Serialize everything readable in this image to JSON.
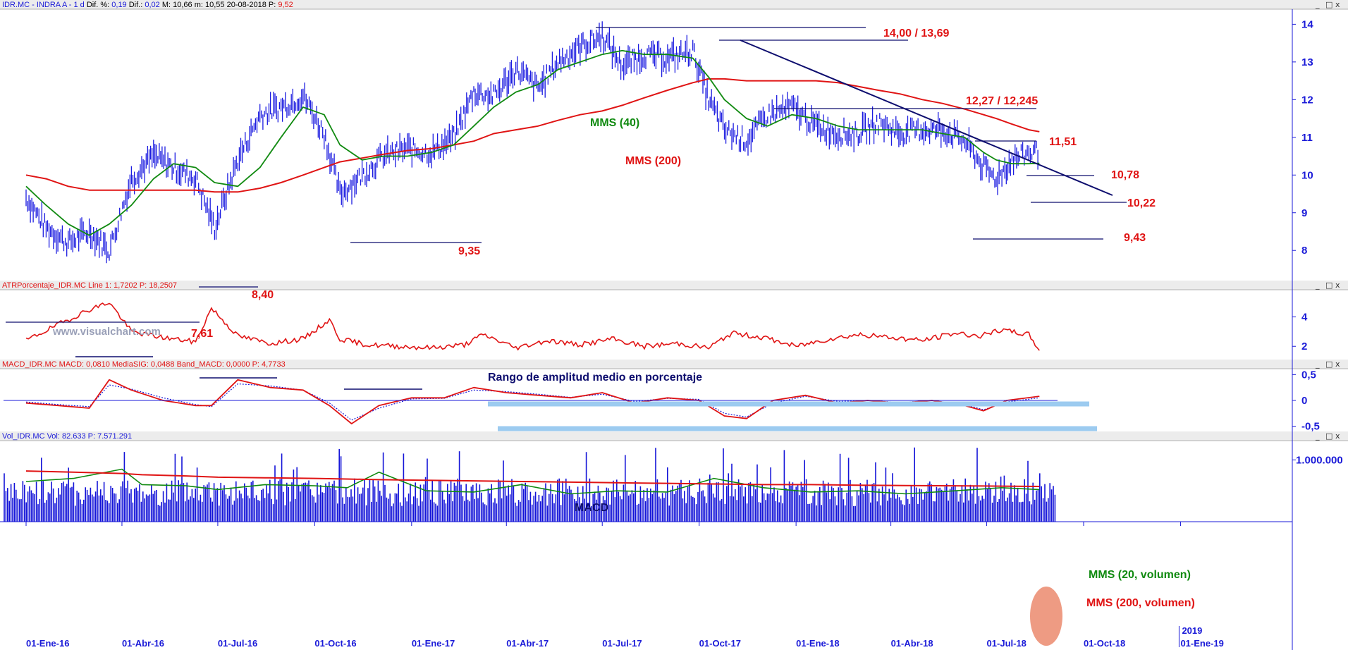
{
  "chart_data": {
    "type": "line",
    "ticker": "IDR.MC",
    "headers": {
      "price": {
        "name": "IDR.MC - INDRA A  - 1 d",
        "items": [
          {
            "label": "Dif. %:",
            "value": "0,19"
          },
          {
            "label": "Dif.:",
            "value": "0,02"
          },
          {
            "label": "M:",
            "value": "10,66"
          },
          {
            "label": "m:",
            "value": "10,55"
          },
          {
            "label": "",
            "value": "20-08-2018"
          },
          {
            "label": "P:",
            "value": "9,52"
          }
        ]
      },
      "atr": "ATRPorcentaje_IDR.MC  Line 1: 1,7202  P: 18,2507",
      "macd": "MACD_IDR.MC  MACD: 0,0810  MediaSIG: 0,0488  Band_MACD: 0,0000  P: 4,7733",
      "volume": "Vol_IDR.MC  Vol: 82.633  P: 7.571.291"
    },
    "x_dates": [
      "01-Ene-16",
      "01-Abr-16",
      "01-Jul-16",
      "01-Oct-16",
      "01-Ene-17",
      "01-Abr-17",
      "01-Jul-17",
      "01-Oct-17",
      "01-Ene-18",
      "01-Abr-18",
      "01-Jul-18",
      "01-Oct-18",
      "01-Ene-19"
    ],
    "x_year_marker": "2019",
    "price_axis": {
      "ticks": [
        "14",
        "13",
        "12",
        "11",
        "10",
        "9",
        "8"
      ],
      "ylim": [
        7.2,
        14.4
      ]
    },
    "atr_axis": {
      "ticks": [
        "4",
        "2"
      ],
      "ylim": [
        1.1,
        5.8
      ]
    },
    "macd_axis": {
      "ticks": [
        "0,5",
        "0",
        "-0,5"
      ],
      "ylim": [
        -0.6,
        0.6
      ]
    },
    "volume_axis": {
      "ticks": [
        "1.000.000"
      ],
      "ylim": [
        0,
        1300000
      ]
    },
    "price_series": {
      "x_points": [
        "2016-01-01",
        "2016-01-20",
        "2016-02-10",
        "2016-03-01",
        "2016-03-20",
        "2016-04-10",
        "2016-05-01",
        "2016-05-20",
        "2016-06-10",
        "2016-06-28",
        "2016-07-20",
        "2016-08-10",
        "2016-08-30",
        "2016-09-20",
        "2016-10-10",
        "2016-10-25",
        "2016-11-15",
        "2016-12-05",
        "2016-12-28",
        "2017-01-20",
        "2017-02-10",
        "2017-03-01",
        "2017-03-20",
        "2017-04-10",
        "2017-05-01",
        "2017-05-20",
        "2017-06-10",
        "2017-07-01",
        "2017-07-20",
        "2017-08-10",
        "2017-09-01",
        "2017-09-25",
        "2017-10-10",
        "2017-10-25",
        "2017-11-15",
        "2017-12-05",
        "2017-12-28",
        "2018-01-20",
        "2018-02-10",
        "2018-03-01",
        "2018-03-20",
        "2018-04-10",
        "2018-05-01",
        "2018-05-20",
        "2018-06-10",
        "2018-06-28",
        "2018-07-10",
        "2018-07-25",
        "2018-08-10",
        "2018-08-20"
      ],
      "close": [
        9.4,
        8.6,
        8.2,
        8.5,
        8.0,
        9.9,
        10.5,
        10.2,
        9.9,
        8.6,
        10.4,
        11.6,
        11.8,
        12.1,
        11.1,
        9.5,
        10.0,
        10.5,
        10.7,
        10.6,
        11.0,
        12.2,
        12.1,
        12.8,
        12.3,
        13.0,
        13.4,
        13.7,
        12.9,
        13.2,
        13.1,
        13.3,
        12.0,
        11.2,
        10.9,
        11.6,
        11.8,
        11.3,
        11.1,
        11.1,
        11.4,
        11.1,
        11.2,
        11.2,
        10.9,
        10.2,
        9.9,
        10.4,
        10.6,
        10.62
      ],
      "ma40": [
        9.7,
        9.2,
        8.7,
        8.4,
        8.7,
        9.2,
        9.9,
        10.3,
        10.2,
        9.8,
        9.7,
        10.2,
        11.0,
        11.8,
        11.6,
        10.8,
        10.4,
        10.5,
        10.5,
        10.6,
        10.8,
        11.3,
        11.8,
        12.2,
        12.4,
        12.8,
        13.0,
        13.2,
        13.3,
        13.2,
        13.2,
        13.1,
        12.6,
        12.0,
        11.5,
        11.3,
        11.6,
        11.5,
        11.3,
        11.2,
        11.2,
        11.2,
        11.2,
        11.1,
        11.0,
        10.6,
        10.4,
        10.3,
        10.3,
        10.31
      ],
      "ma200": [
        10.0,
        9.9,
        9.7,
        9.6,
        9.6,
        9.6,
        9.6,
        9.6,
        9.6,
        9.55,
        9.55,
        9.65,
        9.8,
        10.0,
        10.2,
        10.35,
        10.45,
        10.55,
        10.65,
        10.7,
        10.8,
        10.9,
        11.1,
        11.2,
        11.3,
        11.45,
        11.6,
        11.7,
        11.85,
        12.05,
        12.25,
        12.45,
        12.55,
        12.55,
        12.5,
        12.5,
        12.5,
        12.5,
        12.45,
        12.35,
        12.25,
        12.15,
        12.0,
        11.9,
        11.75,
        11.6,
        11.5,
        11.35,
        11.2,
        11.15
      ]
    },
    "atr_series": {
      "x_points": [
        "2016-01-01",
        "2016-02-01",
        "2016-03-01",
        "2016-03-20",
        "2016-04-10",
        "2016-05-10",
        "2016-06-10",
        "2016-06-25",
        "2016-07-20",
        "2016-08-20",
        "2016-09-20",
        "2016-10-15",
        "2016-10-25",
        "2016-11-20",
        "2016-12-20",
        "2017-01-20",
        "2017-02-20",
        "2017-03-10",
        "2017-04-10",
        "2017-05-10",
        "2017-06-10",
        "2017-07-10",
        "2017-08-10",
        "2017-09-10",
        "2017-10-10",
        "2017-11-01",
        "2017-12-01",
        "2018-01-01",
        "2018-02-01",
        "2018-03-01",
        "2018-04-01",
        "2018-05-01",
        "2018-06-01",
        "2018-06-25",
        "2018-07-15",
        "2018-08-10",
        "2018-08-20"
      ],
      "values": [
        2.4,
        3.5,
        4.5,
        5.0,
        3.0,
        2.6,
        2.3,
        4.6,
        2.7,
        2.2,
        2.5,
        3.8,
        2.5,
        2.1,
        2.0,
        1.9,
        2.1,
        2.8,
        1.9,
        2.4,
        2.1,
        2.5,
        2.0,
        2.2,
        1.9,
        2.9,
        2.6,
        2.0,
        2.5,
        2.8,
        2.6,
        2.4,
        2.9,
        2.7,
        3.1,
        2.8,
        1.72
      ]
    },
    "macd_series": {
      "x_points": [
        "2016-01-01",
        "2016-02-01",
        "2016-03-01",
        "2016-03-20",
        "2016-04-10",
        "2016-05-10",
        "2016-06-10",
        "2016-06-25",
        "2016-07-20",
        "2016-08-20",
        "2016-09-20",
        "2016-10-15",
        "2016-11-05",
        "2016-12-01",
        "2017-01-01",
        "2017-02-01",
        "2017-03-01",
        "2017-04-01",
        "2017-05-01",
        "2017-06-01",
        "2017-07-01",
        "2017-08-01",
        "2017-09-01",
        "2017-10-01",
        "2017-10-25",
        "2017-11-15",
        "2017-12-10",
        "2018-01-10",
        "2018-02-10",
        "2018-03-10",
        "2018-04-10",
        "2018-05-10",
        "2018-06-10",
        "2018-06-28",
        "2018-07-20",
        "2018-08-20"
      ],
      "macd": [
        -0.05,
        -0.1,
        -0.15,
        0.4,
        0.2,
        0.0,
        -0.1,
        -0.1,
        0.4,
        0.25,
        0.2,
        -0.1,
        -0.45,
        -0.1,
        0.05,
        0.05,
        0.25,
        0.15,
        0.1,
        0.05,
        0.15,
        -0.05,
        0.05,
        0.0,
        -0.3,
        -0.35,
        0.0,
        0.1,
        -0.05,
        0.0,
        -0.05,
        0.0,
        -0.1,
        -0.2,
        0.0,
        0.08
      ],
      "signal": [
        -0.03,
        -0.08,
        -0.12,
        0.3,
        0.22,
        0.05,
        -0.08,
        -0.12,
        0.32,
        0.28,
        0.2,
        -0.05,
        -0.38,
        -0.15,
        0.03,
        0.04,
        0.2,
        0.17,
        0.12,
        0.06,
        0.12,
        -0.02,
        0.04,
        0.02,
        -0.25,
        -0.32,
        -0.05,
        0.08,
        -0.02,
        0.0,
        -0.04,
        0.0,
        -0.08,
        -0.18,
        -0.03,
        0.05
      ]
    },
    "volume_series": {
      "x_points": [
        "2016-01-01",
        "2016-02-15",
        "2016-04-01",
        "2016-04-20",
        "2016-06-01",
        "2016-07-01",
        "2016-08-15",
        "2016-10-01",
        "2016-11-01",
        "2016-12-01",
        "2017-01-15",
        "2017-03-01",
        "2017-04-15",
        "2017-06-01",
        "2017-07-15",
        "2017-09-01",
        "2017-10-15",
        "2017-12-01",
        "2018-01-15",
        "2018-03-01",
        "2018-04-15",
        "2018-06-01",
        "2018-07-15",
        "2018-08-20"
      ],
      "ma20": [
        650000,
        700000,
        850000,
        600000,
        580000,
        520000,
        600000,
        580000,
        550000,
        800000,
        500000,
        480000,
        600000,
        450000,
        500000,
        480000,
        700000,
        550000,
        480000,
        500000,
        450000,
        500000,
        550000,
        520000
      ],
      "ma200": [
        820000,
        800000,
        780000,
        760000,
        740000,
        720000,
        710000,
        700000,
        690000,
        680000,
        670000,
        660000,
        650000,
        640000,
        630000,
        620000,
        610000,
        600000,
        600000,
        590000,
        585000,
        580000,
        575000,
        570000
      ]
    },
    "annotations": {
      "levels": [
        "14,00 / 13,69",
        "12,27 / 12,245",
        "11,51",
        "10,78",
        "10,22",
        "9,43",
        "9,35",
        "8,40",
        "7,61"
      ],
      "ma_labels": [
        "MMS (40)",
        "MMS (200)"
      ],
      "atr_title": "Rango de amplitud medio en porcentaje",
      "macd_label": "MACD",
      "vol_labels": [
        "MMS (20, volumen)",
        "MMS (200, volumen)"
      ]
    },
    "colors": {
      "price": "#1c1ce0",
      "ma40": "#108a10",
      "ma200": "#e01414",
      "atr": "#e01414",
      "atr_band": "#9ccbf0",
      "volume": "#1414d8",
      "trend": "#0d0d6e",
      "highlight": "#e87a5a"
    }
  },
  "watermark": "www.visualchart.com",
  "window_controls": [
    "_",
    "□",
    "x"
  ]
}
